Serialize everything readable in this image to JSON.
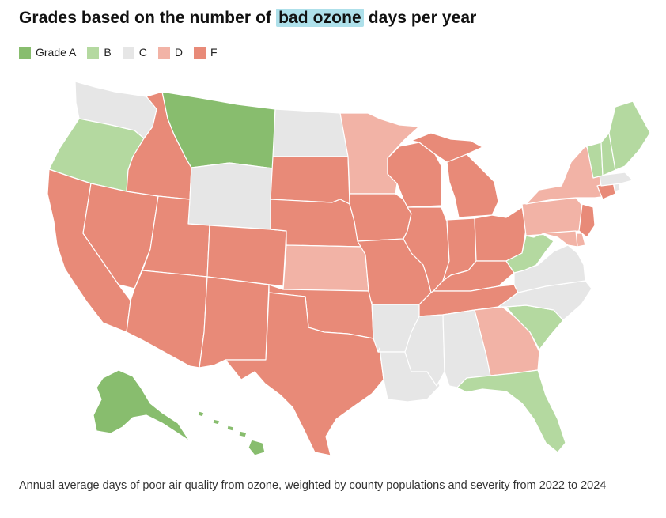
{
  "title": {
    "before": "Grades based on the number of",
    "highlight": "bad ozone",
    "after": "days per year"
  },
  "colors": {
    "A": "#88bd6e",
    "B": "#b4d9a0",
    "C": "#e6e6e6",
    "D": "#f2b3a6",
    "F": "#e88a78",
    "highlight": "#aee0ea"
  },
  "legend": [
    {
      "grade": "A",
      "label": "Grade A"
    },
    {
      "grade": "B",
      "label": "B"
    },
    {
      "grade": "C",
      "label": "C"
    },
    {
      "grade": "D",
      "label": "D"
    },
    {
      "grade": "F",
      "label": "F"
    }
  ],
  "grades": {
    "WA": "C",
    "OR": "B",
    "CA": "F",
    "NV": "F",
    "ID": "F",
    "MT": "A",
    "WY": "C",
    "UT": "F",
    "AZ": "F",
    "CO": "F",
    "NM": "F",
    "ND": "C",
    "SD": "F",
    "NE": "F",
    "KS": "D",
    "OK": "F",
    "TX": "F",
    "MN": "D",
    "IA": "F",
    "MO": "F",
    "AR": "C",
    "LA": "C",
    "WI": "F",
    "IL": "F",
    "MI": "F",
    "IN": "F",
    "OH": "F",
    "KY": "F",
    "TN": "F",
    "MS": "C",
    "AL": "C",
    "GA": "D",
    "FL": "B",
    "SC": "B",
    "NC": "C",
    "VA": "C",
    "WV": "B",
    "PA": "D",
    "NY": "D",
    "NJ": "F",
    "DE": "D",
    "MD": "D",
    "CT": "F",
    "RI": "C",
    "MA": "C",
    "VT": "B",
    "NH": "B",
    "ME": "B",
    "AK": "A",
    "HI": "A"
  },
  "caption": "Annual average days of poor air quality from ozone, weighted by county populations and severity from 2022 to 2024"
}
